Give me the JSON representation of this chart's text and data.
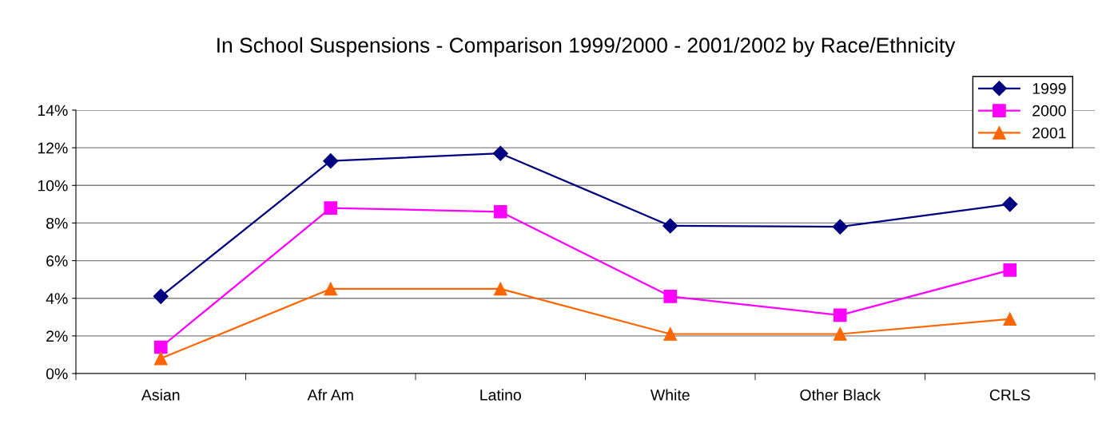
{
  "chart_data": {
    "type": "line",
    "title": "In School Suspensions - Comparison 1999/2000 - 2001/2002 by Race/Ethnicity",
    "categories": [
      "Asian",
      "Afr Am",
      "Latino",
      "White",
      "Other Black",
      "CRLS"
    ],
    "series": [
      {
        "name": "1999",
        "color": "#000080",
        "marker": "diamond",
        "values": [
          4.1,
          11.3,
          11.7,
          7.85,
          7.8,
          9.0
        ]
      },
      {
        "name": "2000",
        "color": "#ff00ff",
        "marker": "square",
        "values": [
          1.4,
          8.8,
          8.6,
          4.1,
          3.1,
          5.5
        ]
      },
      {
        "name": "2001",
        "color": "#ff6600",
        "marker": "triangle",
        "values": [
          0.8,
          4.5,
          4.5,
          2.1,
          2.1,
          2.9
        ]
      }
    ],
    "ylim": [
      0,
      14
    ],
    "yticks": [
      {
        "value": 0,
        "label": "0%"
      },
      {
        "value": 2,
        "label": "2%"
      },
      {
        "value": 4,
        "label": "4%"
      },
      {
        "value": 6,
        "label": "6%"
      },
      {
        "value": 8,
        "label": "8%"
      },
      {
        "value": 10,
        "label": "10%"
      },
      {
        "value": 12,
        "label": "12%"
      },
      {
        "value": 14,
        "label": "14%"
      }
    ],
    "grid": "y",
    "legend": "top right",
    "line_style": "solid"
  }
}
